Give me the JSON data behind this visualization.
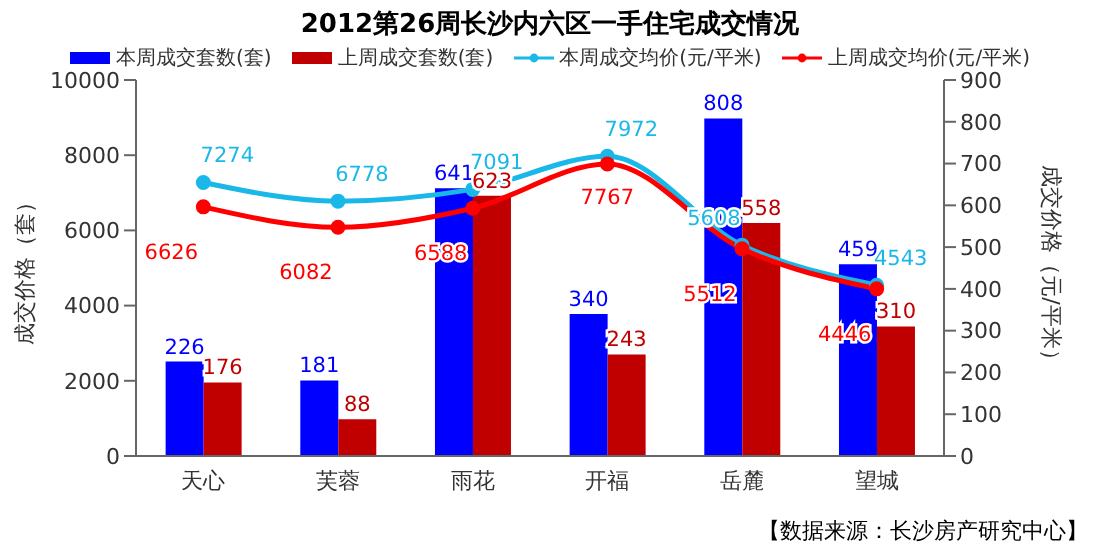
{
  "chart_data": {
    "type": "bar",
    "title": "2012第26周长沙内六区一手住宅成交情况",
    "categories": [
      "天心",
      "芙蓉",
      "雨花",
      "开福",
      "岳麓",
      "望城"
    ],
    "series": [
      {
        "name": "本周成交套数(套)",
        "axis": "y2",
        "color": "#0000ff",
        "values": [
          226,
          181,
          641,
          340,
          808,
          459
        ]
      },
      {
        "name": "上周成交套数(套)",
        "axis": "y2",
        "color": "#c00000",
        "values": [
          176,
          88,
          623,
          243,
          558,
          310
        ]
      },
      {
        "name": "本周成交均价(元/平米)",
        "type": "line",
        "color": "#1ab8e8",
        "values": [
          7274,
          6778,
          7091,
          7972,
          5608,
          4543
        ]
      },
      {
        "name": "上周成交均价(元/平米)",
        "type": "line",
        "color": "#ff0000",
        "values": [
          6626,
          6082,
          6588,
          7767,
          5512,
          4446
        ]
      }
    ],
    "ylabel": "成交价格（套）",
    "y2label": "成交价格（元/平米）",
    "ylim": [
      0,
      10000
    ],
    "yticks": [
      0,
      2000,
      4000,
      6000,
      8000,
      10000
    ],
    "y2lim": [
      0,
      900
    ],
    "y2ticks": [
      0,
      100,
      200,
      300,
      400,
      500,
      600,
      700,
      800,
      900
    ],
    "data_labels": true,
    "legend": "top",
    "grid": false,
    "marker": "circle",
    "line_style": "solid",
    "annotations": [
      "【数据来源：长沙房产研究中心】"
    ]
  }
}
